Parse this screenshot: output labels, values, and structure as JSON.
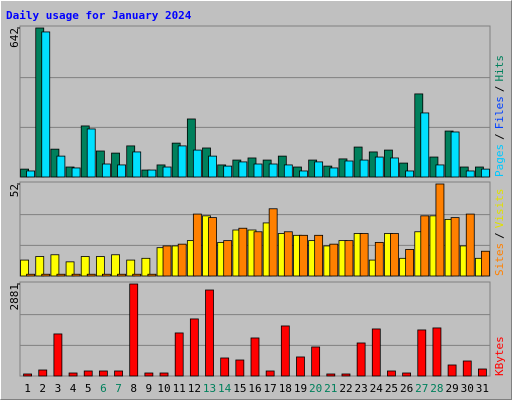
{
  "title": "Daily usage for January 2024",
  "legend_separator": "/",
  "categories": [
    "1",
    "2",
    "3",
    "4",
    "5",
    "6",
    "7",
    "8",
    "9",
    "10",
    "11",
    "12",
    "13",
    "14",
    "15",
    "16",
    "17",
    "18",
    "19",
    "20",
    "21",
    "22",
    "23",
    "24",
    "25",
    "26",
    "27",
    "28",
    "29",
    "30",
    "31"
  ],
  "category_colors": [
    "#000000",
    "#000000",
    "#000000",
    "#000000",
    "#000000",
    "#00805c",
    "#00805c",
    "#000000",
    "#000000",
    "#000000",
    "#000000",
    "#000000",
    "#00805c",
    "#00805c",
    "#000000",
    "#000000",
    "#000000",
    "#000000",
    "#000000",
    "#00805c",
    "#00805c",
    "#000000",
    "#000000",
    "#000000",
    "#000000",
    "#000000",
    "#00805c",
    "#00805c",
    "#000000",
    "#000000",
    "#000000"
  ],
  "chart_data": [
    {
      "type": "bar",
      "ylim": [
        0,
        642
      ],
      "yticks": [
        642
      ],
      "legend": [
        {
          "name": "Pages",
          "color": "#00c8ff"
        },
        {
          "name": "Files",
          "color": "#0040ff"
        },
        {
          "name": "Hits",
          "color": "#00805c"
        }
      ],
      "series": [
        {
          "name": "Hits",
          "color": "#00805c",
          "values": [
            34,
            642,
            120,
            43,
            220,
            112,
            103,
            134,
            30,
            52,
            146,
            250,
            125,
            52,
            73,
            82,
            73,
            90,
            43,
            73,
            47,
            78,
            129,
            108,
            116,
            60,
            358,
            86,
            198,
            43,
            43
          ]
        },
        {
          "name": "Files",
          "color": "#00e0ff",
          "values": [
            26,
            625,
            90,
            39,
            207,
            56,
            52,
            108,
            30,
            43,
            134,
            116,
            90,
            47,
            65,
            56,
            56,
            52,
            26,
            65,
            39,
            69,
            73,
            86,
            82,
            26,
            276,
            52,
            194,
            26,
            34
          ]
        }
      ]
    },
    {
      "type": "bar",
      "ylim": [
        0,
        52
      ],
      "yticks": [
        52
      ],
      "legend": [
        {
          "name": "Sites",
          "color": "#ff8000"
        },
        {
          "name": "Visits",
          "color": "#e0e000"
        }
      ],
      "series": [
        {
          "name": "Visits",
          "color": "#ffff00",
          "values": [
            9,
            11,
            12,
            8,
            11,
            11,
            12,
            9,
            10,
            16,
            17,
            20,
            34,
            19,
            26,
            26,
            30,
            24,
            23,
            20,
            17,
            20,
            24,
            9,
            24,
            10,
            25,
            34,
            32,
            17,
            10
          ]
        },
        {
          "name": "Sites",
          "color": "#ff8000",
          "values": [
            1,
            1,
            1,
            1,
            1,
            1,
            1,
            1,
            1,
            17,
            18,
            35,
            33,
            20,
            27,
            25,
            38,
            25,
            23,
            23,
            18,
            20,
            24,
            19,
            24,
            15,
            34,
            52,
            33,
            35,
            14
          ]
        }
      ]
    },
    {
      "type": "bar",
      "ylim": [
        0,
        2881
      ],
      "yticks": [
        2881
      ],
      "legend": [
        {
          "name": "KBytes",
          "color": "#ff0000"
        }
      ],
      "series": [
        {
          "name": "KBytes",
          "color": "#ff0000",
          "values": [
            63,
            188,
            1317,
            94,
            157,
            157,
            157,
            2881,
            94,
            94,
            1348,
            1787,
            2693,
            564,
            501,
            1191,
            157,
            1567,
            596,
            909,
            63,
            63,
            1034,
            1473,
            157,
            94,
            1442,
            1505,
            345,
            470,
            219
          ]
        }
      ]
    }
  ]
}
